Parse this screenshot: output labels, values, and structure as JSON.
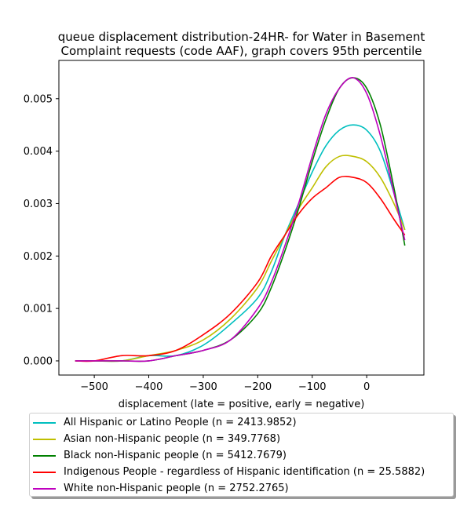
{
  "chart_data": {
    "type": "line",
    "title": "queue displacement distribution-24HR-  for Water in Basement\nComplaint  requests (code AAF), graph covers 95th percentile",
    "xlabel": "displacement (late = positive, early = negative)",
    "ylabel": "",
    "xlim": [
      -565,
      105
    ],
    "ylim": [
      -0.00027,
      0.00573
    ],
    "xticks": [
      -500,
      -400,
      -300,
      -200,
      -100,
      0
    ],
    "xtick_labels": [
      "−500",
      "−400",
      "−300",
      "−200",
      "−100",
      "0"
    ],
    "yticks": [
      0.0,
      0.001,
      0.002,
      0.003,
      0.004,
      0.005
    ],
    "ytick_labels": [
      "0.000",
      "0.001",
      "0.002",
      "0.003",
      "0.004",
      "0.005"
    ],
    "grid": false,
    "legend_position": "below",
    "x": [
      -535,
      -500,
      -450,
      -400,
      -350,
      -300,
      -250,
      -200,
      -175,
      -150,
      -125,
      -100,
      -75,
      -50,
      -25,
      0,
      25,
      50,
      70
    ],
    "series": [
      {
        "name": "All Hispanic or Latino People (n = 2413.9852)",
        "color": "#00bfbf",
        "values": [
          0.0,
          0.0,
          0.0,
          0.0001,
          0.0001,
          0.0003,
          0.0007,
          0.0012,
          0.0017,
          0.0024,
          0.003,
          0.0036,
          0.0041,
          0.0044,
          0.0045,
          0.0044,
          0.004,
          0.0032,
          0.0025
        ]
      },
      {
        "name": "Asian non-Hispanic people (n = 349.7768)",
        "color": "#bfbf00",
        "values": [
          0.0,
          0.0,
          0.0,
          0.0001,
          0.0002,
          0.0004,
          0.0008,
          0.0014,
          0.0019,
          0.0024,
          0.0029,
          0.0033,
          0.0037,
          0.0039,
          0.0039,
          0.0038,
          0.0035,
          0.003,
          0.0025
        ]
      },
      {
        "name": "Black non-Hispanic people (n = 5412.7679)",
        "color": "#008000",
        "values": [
          0.0,
          0.0,
          0.0,
          0.0,
          0.0001,
          0.0002,
          0.0004,
          0.0009,
          0.0014,
          0.0021,
          0.0029,
          0.0038,
          0.0046,
          0.0052,
          0.0054,
          0.0052,
          0.0045,
          0.0033,
          0.0022
        ]
      },
      {
        "name": "Indigenous People - regardless of Hispanic identification (n = 25.5882)",
        "color": "#ff0000",
        "values": [
          0.0,
          0.0,
          0.0001,
          0.0001,
          0.0002,
          0.0005,
          0.0009,
          0.0015,
          0.002,
          0.0024,
          0.0028,
          0.0031,
          0.0033,
          0.0035,
          0.0035,
          0.0034,
          0.0031,
          0.0027,
          0.0024
        ]
      },
      {
        "name": "White non-Hispanic people (n = 2752.2765)",
        "color": "#bf00bf",
        "values": [
          0.0,
          0.0,
          0.0,
          0.0,
          0.0001,
          0.0002,
          0.0004,
          0.001,
          0.0015,
          0.0022,
          0.003,
          0.0039,
          0.0047,
          0.0052,
          0.0054,
          0.0051,
          0.0043,
          0.0032,
          0.0023
        ]
      }
    ]
  }
}
